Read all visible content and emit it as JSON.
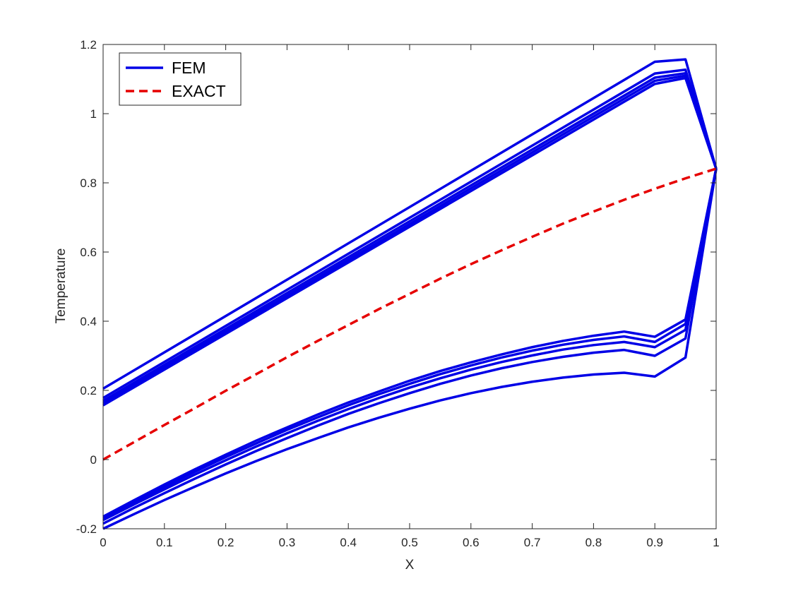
{
  "chart_data": {
    "type": "line",
    "xlabel": "X",
    "ylabel": "Temperature",
    "xlim": [
      0,
      1
    ],
    "ylim": [
      -0.2,
      1.2
    ],
    "xticks": [
      "0",
      "0.1",
      "0.2",
      "0.3",
      "0.4",
      "0.5",
      "0.6",
      "0.7",
      "0.8",
      "0.9",
      "1"
    ],
    "yticks": [
      "-0.2",
      "0",
      "0.2",
      "0.4",
      "0.6",
      "0.8",
      "1",
      "1.2"
    ],
    "grid": false,
    "legend_position": "top-left",
    "legend": [
      {
        "label": "FEM",
        "style": "solid",
        "color": "#0000e6"
      },
      {
        "label": "EXACT",
        "style": "dashed",
        "color": "#e60000"
      }
    ],
    "series": [
      {
        "legend": "FEM",
        "color": "#0000e6",
        "style": "solid",
        "x": [
          0,
          0.9,
          0.95,
          1
        ],
        "y": [
          0.205,
          1.15,
          1.157,
          0.841
        ]
      },
      {
        "legend": "FEM",
        "color": "#0000e6",
        "style": "solid",
        "x": [
          0,
          0.9,
          0.95,
          1
        ],
        "y": [
          0.178,
          1.116,
          1.127,
          0.841
        ]
      },
      {
        "legend": "FEM",
        "color": "#0000e6",
        "style": "solid",
        "x": [
          0,
          0.9,
          0.95,
          1
        ],
        "y": [
          0.17,
          1.104,
          1.117,
          0.841
        ]
      },
      {
        "legend": "FEM",
        "color": "#0000e6",
        "style": "solid",
        "x": [
          0,
          0.9,
          0.95,
          1
        ],
        "y": [
          0.163,
          1.095,
          1.11,
          0.841
        ]
      },
      {
        "legend": "FEM",
        "color": "#0000e6",
        "style": "solid",
        "x": [
          0,
          0.9,
          0.95,
          1
        ],
        "y": [
          0.157,
          1.086,
          1.103,
          0.841
        ]
      },
      {
        "legend": "FEM",
        "color": "#0000e6",
        "style": "solid",
        "x": [
          0,
          0.05,
          0.1,
          0.15,
          0.2,
          0.25,
          0.3,
          0.35,
          0.4,
          0.45,
          0.5,
          0.55,
          0.6,
          0.65,
          0.7,
          0.75,
          0.8,
          0.85,
          0.9,
          0.95,
          1
        ],
        "y": [
          -0.165,
          -0.118,
          -0.072,
          -0.028,
          0.014,
          0.055,
          0.093,
          0.13,
          0.165,
          0.197,
          0.228,
          0.256,
          0.281,
          0.304,
          0.325,
          0.343,
          0.358,
          0.37,
          0.355,
          0.405,
          0.841
        ]
      },
      {
        "legend": "FEM",
        "color": "#0000e6",
        "style": "solid",
        "x": [
          0,
          0.05,
          0.1,
          0.15,
          0.2,
          0.25,
          0.3,
          0.35,
          0.4,
          0.45,
          0.5,
          0.55,
          0.6,
          0.65,
          0.7,
          0.75,
          0.8,
          0.85,
          0.9,
          0.95,
          1
        ],
        "y": [
          -0.17,
          -0.124,
          -0.079,
          -0.035,
          0.007,
          0.047,
          0.086,
          0.122,
          0.157,
          0.189,
          0.219,
          0.247,
          0.272,
          0.295,
          0.315,
          0.332,
          0.346,
          0.356,
          0.34,
          0.392,
          0.841
        ]
      },
      {
        "legend": "FEM",
        "color": "#0000e6",
        "style": "solid",
        "x": [
          0,
          0.05,
          0.1,
          0.15,
          0.2,
          0.25,
          0.3,
          0.35,
          0.4,
          0.45,
          0.5,
          0.55,
          0.6,
          0.65,
          0.7,
          0.75,
          0.8,
          0.85,
          0.9,
          0.95,
          1
        ],
        "y": [
          -0.175,
          -0.13,
          -0.086,
          -0.043,
          -0.002,
          0.038,
          0.076,
          0.112,
          0.146,
          0.178,
          0.208,
          0.235,
          0.26,
          0.282,
          0.301,
          0.318,
          0.331,
          0.34,
          0.325,
          0.375,
          0.841
        ]
      },
      {
        "legend": "FEM",
        "color": "#0000e6",
        "style": "solid",
        "x": [
          0,
          0.05,
          0.1,
          0.15,
          0.2,
          0.25,
          0.3,
          0.35,
          0.4,
          0.45,
          0.5,
          0.55,
          0.6,
          0.65,
          0.7,
          0.75,
          0.8,
          0.85,
          0.9,
          0.95,
          1
        ],
        "y": [
          -0.185,
          -0.14,
          -0.097,
          -0.055,
          -0.014,
          0.025,
          0.062,
          0.098,
          0.132,
          0.163,
          0.192,
          0.219,
          0.243,
          0.264,
          0.282,
          0.297,
          0.309,
          0.317,
          0.3,
          0.35,
          0.841
        ]
      },
      {
        "legend": "FEM",
        "color": "#0000e6",
        "style": "solid",
        "x": [
          0,
          0.05,
          0.1,
          0.15,
          0.2,
          0.25,
          0.3,
          0.35,
          0.4,
          0.45,
          0.5,
          0.55,
          0.6,
          0.65,
          0.7,
          0.75,
          0.8,
          0.85,
          0.9,
          0.95,
          1
        ],
        "y": [
          -0.2,
          -0.158,
          -0.117,
          -0.078,
          -0.04,
          -0.004,
          0.03,
          0.062,
          0.093,
          0.121,
          0.147,
          0.171,
          0.192,
          0.21,
          0.225,
          0.237,
          0.246,
          0.251,
          0.24,
          0.295,
          0.841
        ]
      },
      {
        "legend": "EXACT",
        "color": "#e60000",
        "style": "dashed",
        "x": [
          0,
          0.05,
          0.1,
          0.15,
          0.2,
          0.25,
          0.3,
          0.35,
          0.4,
          0.45,
          0.5,
          0.55,
          0.6,
          0.65,
          0.7,
          0.75,
          0.8,
          0.85,
          0.9,
          0.95,
          1
        ],
        "y": [
          0,
          0.05,
          0.1,
          0.149,
          0.199,
          0.247,
          0.296,
          0.343,
          0.389,
          0.435,
          0.479,
          0.523,
          0.565,
          0.605,
          0.644,
          0.682,
          0.717,
          0.751,
          0.783,
          0.813,
          0.841
        ]
      }
    ]
  }
}
